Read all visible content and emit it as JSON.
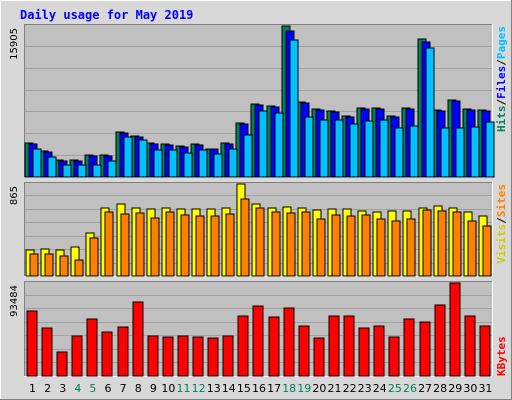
{
  "chart_data": {
    "type": "bar",
    "title": "Daily usage for May 2019",
    "colors": {
      "hits": "#00805c",
      "files": "#0000ff",
      "pages": "#00c0ff",
      "visits": "#ffff00",
      "sites": "#ff8000",
      "kbytes": "#ff0000",
      "weekend_day_label": "#00805c",
      "weekday_label": "#000000",
      "title": "#0000ff",
      "panel_bg": "#c0c0c0",
      "page_bg": "#d8d8d8"
    },
    "days": [
      "1",
      "2",
      "3",
      "4",
      "5",
      "6",
      "7",
      "8",
      "9",
      "10",
      "11",
      "12",
      "13",
      "14",
      "15",
      "16",
      "17",
      "18",
      "19",
      "20",
      "21",
      "22",
      "23",
      "24",
      "25",
      "26",
      "27",
      "28",
      "29",
      "30",
      "31"
    ],
    "weekend_days": [
      "4",
      "5",
      "11",
      "12",
      "18",
      "19",
      "25",
      "26"
    ],
    "panels": [
      {
        "name": "hits-files-pages",
        "max_label": "15905",
        "ymax": 15905,
        "labels": [
          {
            "text": "Hits",
            "color": "#00805c"
          },
          {
            "text": "/",
            "color": "#000000"
          },
          {
            "text": "Files",
            "color": "#0000ff"
          },
          {
            "text": "/",
            "color": "#000000"
          },
          {
            "text": "Pages",
            "color": "#00c0ff"
          }
        ],
        "series": [
          {
            "name": "Hits",
            "color": "#00805c",
            "values": [
              3600,
              2700,
              1800,
              1800,
              2300,
              2300,
              4700,
              4300,
              3600,
              3500,
              3300,
              3500,
              3000,
              3600,
              5700,
              7700,
              7500,
              15905,
              7900,
              7200,
              6900,
              6400,
              7300,
              7300,
              6400,
              7300,
              14500,
              7100,
              8100,
              7200,
              7100
            ]
          },
          {
            "name": "Files",
            "color": "#0000ff",
            "values": [
              3500,
              2600,
              1700,
              1700,
              2200,
              2200,
              4600,
              4200,
              3500,
              3400,
              3200,
              3400,
              2900,
              3500,
              5600,
              7600,
              7400,
              15400,
              7800,
              7100,
              6800,
              6300,
              7200,
              7200,
              6300,
              7200,
              14200,
              7000,
              8000,
              7100,
              7000
            ]
          },
          {
            "name": "Pages",
            "color": "#00c0ff",
            "values": [
              2900,
              2100,
              1300,
              1300,
              1300,
              1700,
              4200,
              3900,
              2800,
              2800,
              2500,
              2800,
              2400,
              2900,
              4400,
              7000,
              6700,
              14400,
              6300,
              6000,
              6000,
              5600,
              5900,
              6000,
              5200,
              5400,
              13600,
              5200,
              5200,
              5300,
              5800
            ]
          }
        ]
      },
      {
        "name": "visits-sites",
        "max_label": "865",
        "ymax": 865,
        "labels": [
          {
            "text": "Visits",
            "color": "#cccc00"
          },
          {
            "text": "/",
            "color": "#000000"
          },
          {
            "text": "Sites",
            "color": "#ff8000"
          }
        ],
        "series": [
          {
            "name": "Visits",
            "color": "#ffff00",
            "values": [
              245,
              255,
              240,
              270,
              405,
              640,
              680,
              640,
              630,
              640,
              630,
              630,
              630,
              640,
              865,
              675,
              640,
              645,
              640,
              620,
              630,
              630,
              610,
              600,
              610,
              610,
              640,
              660,
              640,
              600,
              560
            ]
          },
          {
            "name": "Sites",
            "color": "#ff8000",
            "values": [
              210,
              210,
              185,
              155,
              360,
              605,
              580,
              590,
              550,
              600,
              570,
              560,
              560,
              580,
              720,
              640,
              600,
              590,
              600,
              540,
              575,
              560,
              575,
              540,
              520,
              540,
              620,
              610,
              600,
              520,
              470
            ]
          }
        ]
      },
      {
        "name": "kbytes",
        "max_label": "93484",
        "ymax": 93484,
        "labels": [
          {
            "text": "KBytes",
            "color": "#ff0000"
          }
        ],
        "series": [
          {
            "name": "KBytes",
            "color": "#ff0000",
            "values": [
              65000,
              48000,
              24000,
              40000,
              57000,
              44000,
              49000,
              74000,
              40000,
              39000,
              40000,
              39000,
              38000,
              40000,
              60000,
              70000,
              59000,
              68000,
              50000,
              38000,
              60000,
              60000,
              48000,
              50000,
              39000,
              57000,
              54000,
              71000,
              93484,
              60000,
              50000
            ]
          }
        ]
      }
    ]
  }
}
